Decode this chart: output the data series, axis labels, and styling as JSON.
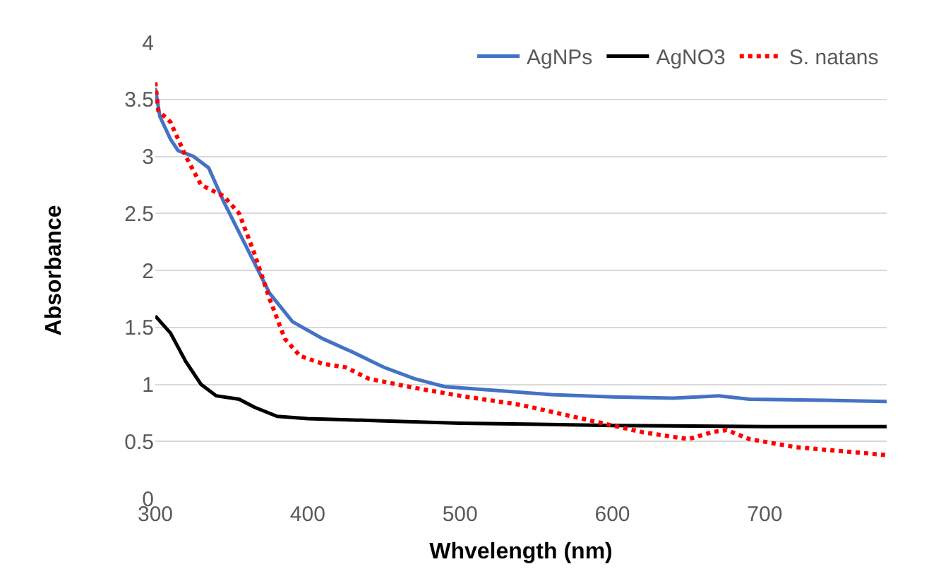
{
  "chart_data": {
    "type": "line",
    "xlabel": "Whvelength (nm)",
    "ylabel": "Absorbance",
    "xlim": [
      300,
      780
    ],
    "xticks": [
      300,
      400,
      500,
      600,
      700
    ],
    "ylim": [
      0,
      4
    ],
    "yticks": [
      0,
      0.5,
      1,
      1.5,
      2,
      2.5,
      3,
      3.5,
      4
    ],
    "grid": "y",
    "legend": "top right",
    "marker": "none",
    "series": [
      {
        "name": "AgNPs",
        "color": "#4472c4",
        "line_style": "solid",
        "x": [
          300,
          303,
          310,
          315,
          325,
          335,
          345,
          360,
          375,
          390,
          410,
          430,
          450,
          470,
          490,
          520,
          560,
          600,
          640,
          670,
          690,
          740,
          780
        ],
        "values": [
          3.6,
          3.35,
          3.15,
          3.05,
          3.0,
          2.9,
          2.6,
          2.2,
          1.8,
          1.55,
          1.4,
          1.28,
          1.15,
          1.05,
          0.98,
          0.95,
          0.91,
          0.89,
          0.88,
          0.9,
          0.87,
          0.86,
          0.85
        ]
      },
      {
        "name": "AgNO3",
        "color": "#000000",
        "line_style": "solid",
        "x": [
          300,
          310,
          320,
          330,
          340,
          355,
          365,
          380,
          400,
          450,
          500,
          600,
          700,
          780
        ],
        "values": [
          1.6,
          1.45,
          1.2,
          1.0,
          0.9,
          0.87,
          0.8,
          0.72,
          0.7,
          0.68,
          0.66,
          0.64,
          0.63,
          0.63
        ]
      },
      {
        "name": "S. natans",
        "color": "#ff0000",
        "line_style": "dotted",
        "x": [
          300,
          302,
          310,
          320,
          330,
          345,
          355,
          365,
          375,
          385,
          395,
          410,
          425,
          440,
          470,
          500,
          540,
          580,
          620,
          650,
          665,
          675,
          690,
          720,
          780
        ],
        "values": [
          3.65,
          3.4,
          3.3,
          3.0,
          2.75,
          2.65,
          2.5,
          2.15,
          1.75,
          1.4,
          1.25,
          1.18,
          1.15,
          1.05,
          0.97,
          0.9,
          0.82,
          0.7,
          0.58,
          0.52,
          0.58,
          0.6,
          0.52,
          0.45,
          0.38
        ]
      }
    ]
  }
}
